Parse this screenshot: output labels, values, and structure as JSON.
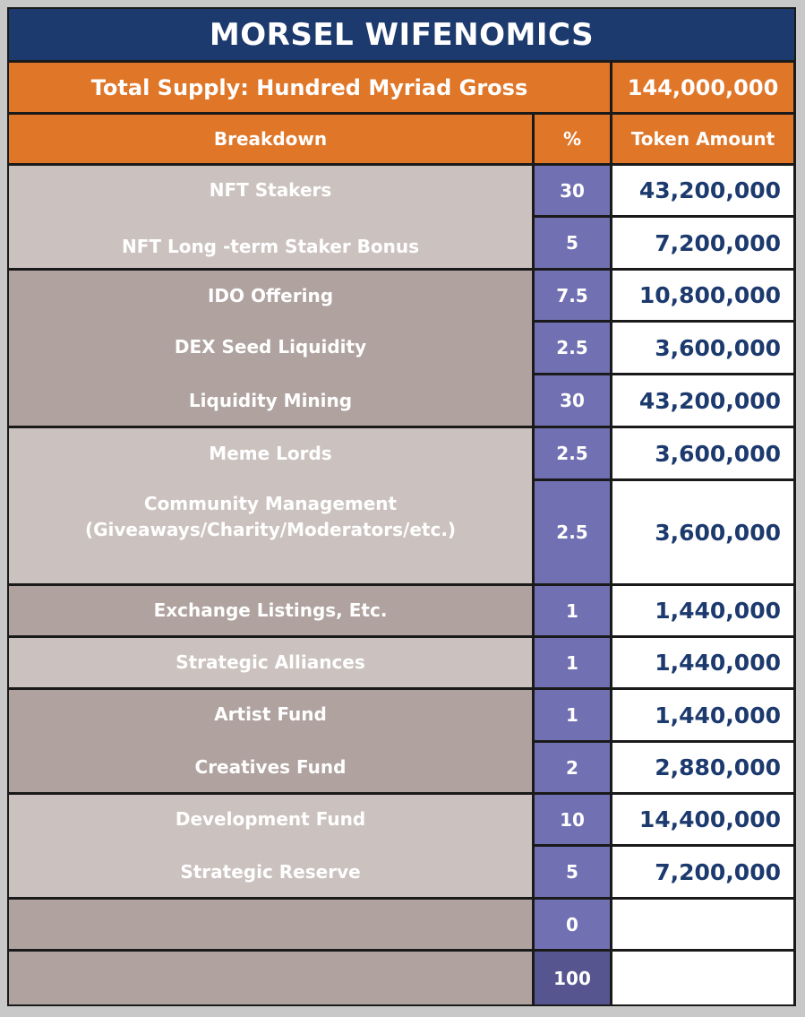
{
  "title": "MORSEL WIFENOMICS",
  "supply": {
    "label": "Total Supply: Hundred Myriad Gross",
    "value": "144,000,000"
  },
  "headers": {
    "breakdown": "Breakdown",
    "percent": "%",
    "token_amount": "Token Amount"
  },
  "rows": [
    {
      "label": "NFT Stakers",
      "percent": "30",
      "amount": "43,200,000"
    },
    {
      "label": "NFT Long -term Staker Bonus",
      "percent": "5",
      "amount": "7,200,000"
    },
    {
      "label": "IDO Offering",
      "percent": "7.5",
      "amount": "10,800,000"
    },
    {
      "label": "DEX Seed Liquidity",
      "percent": "2.5",
      "amount": "3,600,000"
    },
    {
      "label": "Liquidity Mining",
      "percent": "30",
      "amount": "43,200,000"
    },
    {
      "label": "Meme Lords",
      "percent": "2.5",
      "amount": "3,600,000"
    },
    {
      "label": "Community Management\n(Giveaways/Charity/Moderators/etc.)",
      "percent": "2.5",
      "amount": "3,600,000"
    },
    {
      "label": "Exchange Listings, Etc.",
      "percent": "1",
      "amount": "1,440,000"
    },
    {
      "label": "Strategic Alliances",
      "percent": "1",
      "amount": "1,440,000"
    },
    {
      "label": "Artist Fund",
      "percent": "1",
      "amount": "1,440,000"
    },
    {
      "label": "Creatives Fund",
      "percent": "2",
      "amount": "2,880,000"
    },
    {
      "label": "Development Fund",
      "percent": "10",
      "amount": "14,400,000"
    },
    {
      "label": "Strategic Reserve",
      "percent": "5",
      "amount": "7,200,000"
    },
    {
      "label": "",
      "percent": "0",
      "amount": ""
    },
    {
      "label": "",
      "percent": "100",
      "amount": ""
    }
  ],
  "colors": {
    "title_bg": "#1c3a6e",
    "header_bg": "#e07628",
    "light_band": "#cbc2bf",
    "dark_band": "#afa29f",
    "percent_bg": "#7170b2",
    "total_percent_bg": "#56558f",
    "amount_text": "#1c3a6e"
  }
}
